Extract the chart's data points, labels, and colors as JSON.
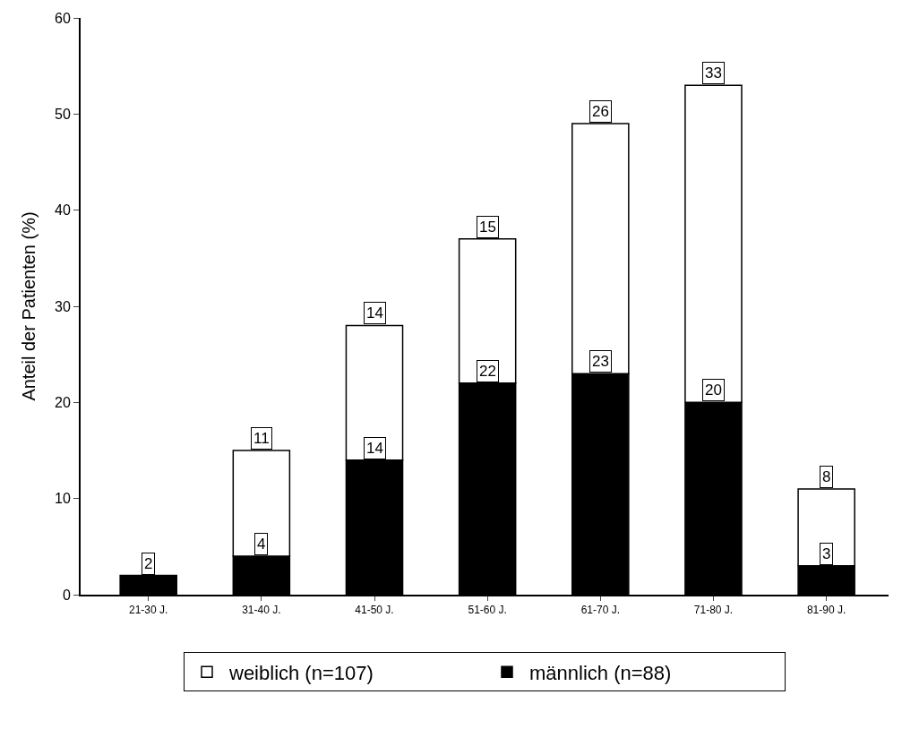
{
  "chart_data": {
    "type": "bar",
    "stacked": true,
    "ylabel": "Anteil der Patienten (%)",
    "categories": [
      "21-30 J.",
      "31-40 J.",
      "41-50 J.",
      "51-60 J.",
      "61-70 J.",
      "71-80 J.",
      "81-90 J."
    ],
    "series": [
      {
        "name": "männlich (n=88)",
        "color": "#000000",
        "values": [
          2,
          4,
          14,
          22,
          23,
          20,
          3
        ]
      },
      {
        "name": "weiblich (n=107)",
        "color": "#ffffff",
        "values": [
          null,
          11,
          14,
          15,
          26,
          33,
          8
        ]
      }
    ],
    "ylim": [
      0,
      60
    ],
    "yticks": [
      0,
      10,
      20,
      30,
      40,
      50,
      60
    ],
    "grid": false,
    "legend": "bottom",
    "data_labels": true
  }
}
